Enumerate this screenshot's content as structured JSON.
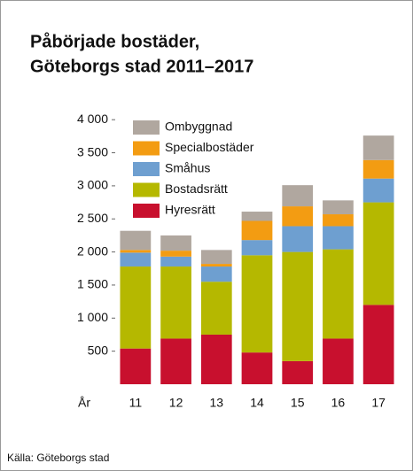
{
  "chart_data": {
    "type": "stacked_bar",
    "title": [
      "Påbörjade bostäder,",
      "Göteborgs stad 2011–2017"
    ],
    "x_label": "År",
    "source": "Källa: Göteborgs stad",
    "categories": [
      "11",
      "12",
      "13",
      "14",
      "15",
      "16",
      "17"
    ],
    "series": [
      {
        "name": "Hyresrätt",
        "color": "#c8102e",
        "values": [
          540,
          690,
          750,
          480,
          350,
          690,
          1200
        ]
      },
      {
        "name": "Bostadsrätt",
        "color": "#b5b800",
        "values": [
          1240,
          1090,
          800,
          1470,
          1650,
          1350,
          1550
        ]
      },
      {
        "name": "Småhus",
        "color": "#6e9fd0",
        "values": [
          210,
          150,
          230,
          230,
          390,
          350,
          360
        ]
      },
      {
        "name": "Specialbostäder",
        "color": "#f39c12",
        "values": [
          40,
          90,
          40,
          290,
          300,
          180,
          280
        ]
      },
      {
        "name": "Ombyggnad",
        "color": "#b0a79f",
        "values": [
          290,
          230,
          210,
          140,
          320,
          210,
          370
        ]
      }
    ],
    "ylim": [
      0,
      4150
    ],
    "yticks": [
      {
        "value": 500,
        "label": "500"
      },
      {
        "value": 1000,
        "label": "1 000"
      },
      {
        "value": 1500,
        "label": "1 500"
      },
      {
        "value": 2000,
        "label": "2 000"
      },
      {
        "value": 2500,
        "label": "2 500"
      },
      {
        "value": 3000,
        "label": "3 000"
      },
      {
        "value": 3500,
        "label": "3 500"
      },
      {
        "value": 4000,
        "label": "4 000"
      }
    ]
  }
}
